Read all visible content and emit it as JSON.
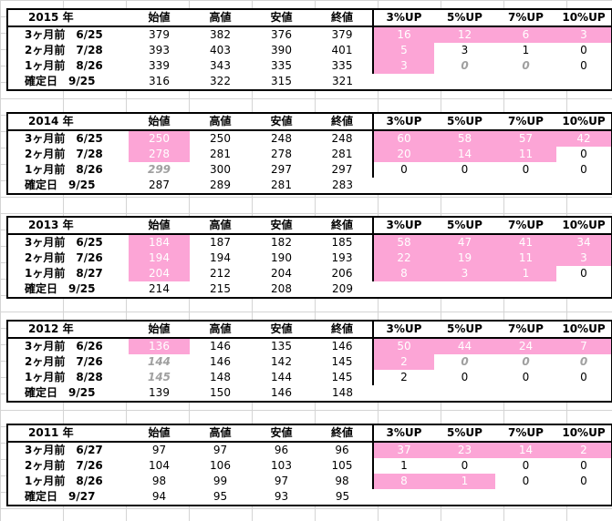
{
  "headers": [
    "始値",
    "高値",
    "安値",
    "終値",
    "3%UP",
    "5%UP",
    "7%UP",
    "10%UP"
  ],
  "colors": {
    "highlight": "#fca5d6",
    "muted": "#a0a0a0"
  },
  "blocks": [
    {
      "year": "2015 年",
      "rows": [
        {
          "label": "3ヶ月前　6/25",
          "prices": [
            "379",
            "382",
            "376",
            "379"
          ],
          "ups": [
            "16",
            "12",
            "6",
            "3"
          ],
          "pink_prices": [],
          "ital_prices": [],
          "pink_ups": [
            0,
            1,
            2,
            3
          ],
          "ital_ups": []
        },
        {
          "label": "2ヶ月前　7/28",
          "prices": [
            "393",
            "403",
            "390",
            "401"
          ],
          "ups": [
            "5",
            "3",
            "1",
            "0"
          ],
          "pink_prices": [],
          "ital_prices": [],
          "pink_ups": [
            0
          ],
          "ital_ups": []
        },
        {
          "label": "1ヶ月前　8/26",
          "prices": [
            "339",
            "343",
            "335",
            "335"
          ],
          "ups": [
            "3",
            "0",
            "0",
            "0"
          ],
          "pink_prices": [],
          "ital_prices": [],
          "pink_ups": [
            0
          ],
          "ital_ups": [
            1,
            2
          ]
        },
        {
          "label": "確定日　9/25",
          "prices": [
            "316",
            "322",
            "315",
            "321"
          ],
          "ups": [
            "",
            "",
            "",
            ""
          ],
          "pink_prices": [],
          "ital_prices": [],
          "pink_ups": [],
          "ital_ups": []
        }
      ]
    },
    {
      "year": "2014 年",
      "rows": [
        {
          "label": "3ヶ月前　6/25",
          "prices": [
            "250",
            "250",
            "248",
            "248"
          ],
          "ups": [
            "60",
            "58",
            "57",
            "42"
          ],
          "pink_prices": [
            0
          ],
          "ital_prices": [],
          "pink_ups": [
            0,
            1,
            2,
            3
          ],
          "ital_ups": []
        },
        {
          "label": "2ヶ月前　7/28",
          "prices": [
            "278",
            "281",
            "278",
            "281"
          ],
          "ups": [
            "20",
            "14",
            "11",
            "0"
          ],
          "pink_prices": [
            0
          ],
          "ital_prices": [],
          "pink_ups": [
            0,
            1,
            2
          ],
          "ital_ups": []
        },
        {
          "label": "1ヶ月前　8/26",
          "prices": [
            "299",
            "300",
            "297",
            "297"
          ],
          "ups": [
            "0",
            "0",
            "0",
            "0"
          ],
          "pink_prices": [],
          "ital_prices": [
            0
          ],
          "pink_ups": [],
          "ital_ups": []
        },
        {
          "label": "確定日　9/25",
          "prices": [
            "287",
            "289",
            "281",
            "283"
          ],
          "ups": [
            "",
            "",
            "",
            ""
          ],
          "pink_prices": [],
          "ital_prices": [],
          "pink_ups": [],
          "ital_ups": []
        }
      ]
    },
    {
      "year": "2013 年",
      "rows": [
        {
          "label": "3ヶ月前　6/25",
          "prices": [
            "184",
            "187",
            "182",
            "185"
          ],
          "ups": [
            "58",
            "47",
            "41",
            "34"
          ],
          "pink_prices": [
            0
          ],
          "ital_prices": [],
          "pink_ups": [
            0,
            1,
            2,
            3
          ],
          "ital_ups": []
        },
        {
          "label": "2ヶ月前　7/26",
          "prices": [
            "194",
            "194",
            "190",
            "193"
          ],
          "ups": [
            "22",
            "19",
            "11",
            "3"
          ],
          "pink_prices": [
            0
          ],
          "ital_prices": [],
          "pink_ups": [
            0,
            1,
            2,
            3
          ],
          "ital_ups": []
        },
        {
          "label": "1ヶ月前　8/27",
          "prices": [
            "204",
            "212",
            "204",
            "206"
          ],
          "ups": [
            "8",
            "3",
            "1",
            "0"
          ],
          "pink_prices": [
            0
          ],
          "ital_prices": [],
          "pink_ups": [
            0,
            1,
            2
          ],
          "ital_ups": []
        },
        {
          "label": "確定日　9/25",
          "prices": [
            "214",
            "215",
            "208",
            "209"
          ],
          "ups": [
            "",
            "",
            "",
            ""
          ],
          "pink_prices": [],
          "ital_prices": [],
          "pink_ups": [],
          "ital_ups": []
        }
      ]
    },
    {
      "year": "2012 年",
      "rows": [
        {
          "label": "3ヶ月前　6/26",
          "prices": [
            "136",
            "146",
            "135",
            "146"
          ],
          "ups": [
            "50",
            "44",
            "24",
            "7"
          ],
          "pink_prices": [
            0
          ],
          "ital_prices": [],
          "pink_ups": [
            0,
            1,
            2,
            3
          ],
          "ital_ups": []
        },
        {
          "label": "2ヶ月前　7/26",
          "prices": [
            "144",
            "146",
            "142",
            "145"
          ],
          "ups": [
            "2",
            "0",
            "0",
            "0"
          ],
          "pink_prices": [],
          "ital_prices": [
            0
          ],
          "pink_ups": [
            0
          ],
          "ital_ups": [
            1,
            2,
            3
          ]
        },
        {
          "label": "1ヶ月前　8/28",
          "prices": [
            "145",
            "148",
            "144",
            "145"
          ],
          "ups": [
            "2",
            "0",
            "0",
            "0"
          ],
          "pink_prices": [],
          "ital_prices": [
            0
          ],
          "pink_ups": [],
          "ital_ups": []
        },
        {
          "label": "確定日　9/25",
          "prices": [
            "139",
            "150",
            "146",
            "148"
          ],
          "ups": [
            "",
            "",
            "",
            ""
          ],
          "pink_prices": [],
          "ital_prices": [],
          "pink_ups": [],
          "ital_ups": []
        }
      ]
    },
    {
      "year": "2011 年",
      "rows": [
        {
          "label": "3ヶ月前　6/27",
          "prices": [
            "97",
            "97",
            "96",
            "96"
          ],
          "ups": [
            "37",
            "23",
            "14",
            "2"
          ],
          "pink_prices": [],
          "ital_prices": [],
          "pink_ups": [
            0,
            1,
            2,
            3
          ],
          "ital_ups": []
        },
        {
          "label": "2ヶ月前　7/26",
          "prices": [
            "104",
            "106",
            "103",
            "105"
          ],
          "ups": [
            "1",
            "0",
            "0",
            "0"
          ],
          "pink_prices": [],
          "ital_prices": [],
          "pink_ups": [],
          "ital_ups": []
        },
        {
          "label": "1ヶ月前　8/26",
          "prices": [
            "98",
            "99",
            "97",
            "98"
          ],
          "ups": [
            "8",
            "1",
            "0",
            "0"
          ],
          "pink_prices": [],
          "ital_prices": [],
          "pink_ups": [
            0,
            1
          ],
          "ital_ups": []
        },
        {
          "label": "確定日　9/27",
          "prices": [
            "94",
            "95",
            "93",
            "95"
          ],
          "ups": [
            "",
            "",
            "",
            ""
          ],
          "pink_prices": [],
          "ital_prices": [],
          "pink_ups": [],
          "ital_ups": []
        }
      ]
    }
  ]
}
